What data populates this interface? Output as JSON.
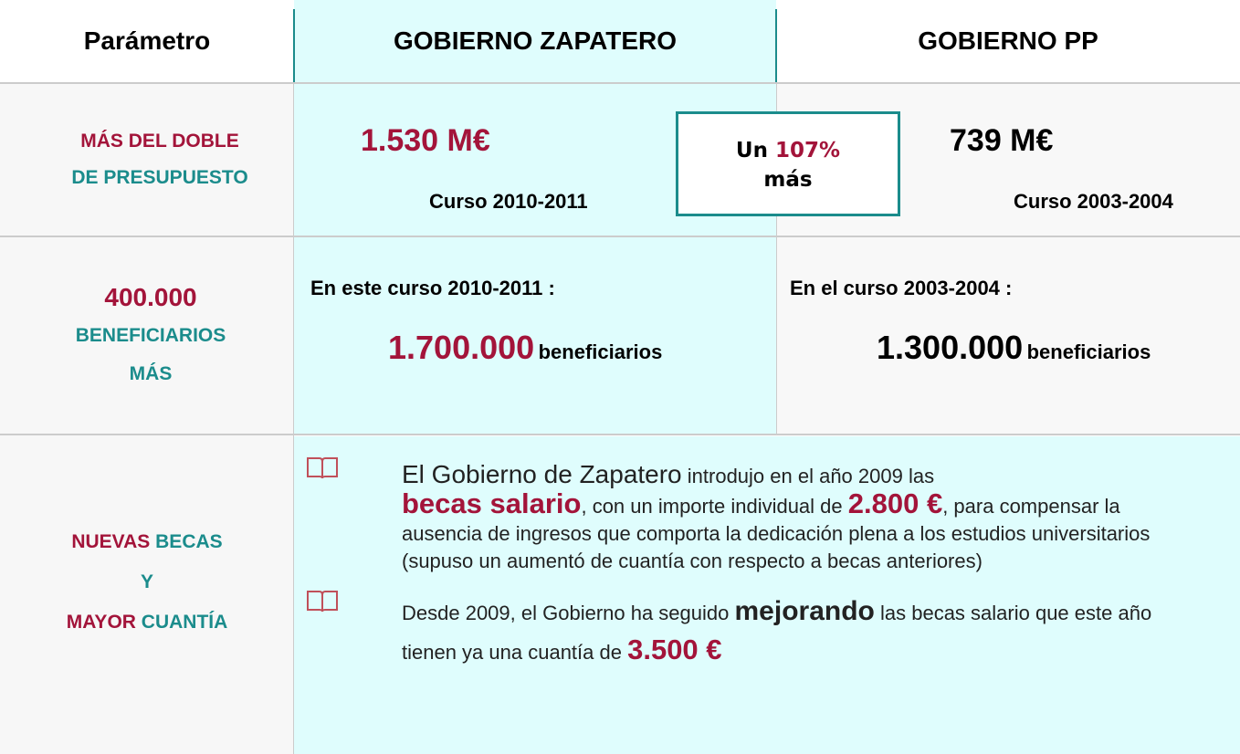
{
  "table": {
    "headers": [
      "Parámetro",
      "GOBIERNO ZAPATERO",
      "GOBIERNO PP"
    ],
    "rows": [
      {
        "label": [
          "MÁS DEL DOBLE",
          "DE PRESUPUESTO"
        ],
        "zapatero": {
          "amount": "1.530 M€",
          "course": "Curso 2010-2011"
        },
        "comparison": [
          "Un",
          "107%",
          "más"
        ],
        "pp": {
          "amount": "739 M€",
          "course": "Curso 2003-2004"
        }
      },
      {
        "label": [
          "400.000",
          "BENEFICIARIOS",
          "MÁS"
        ],
        "zapatero": {
          "intro": "En este curso 2010-2011 :",
          "number": "1.700.000",
          "unit": "beneficiarios"
        },
        "pp": {
          "intro": "En el curso 2003-2004 :",
          "number": "1.300.000",
          "unit": "beneficiarios"
        }
      },
      {
        "label": [
          [
            "NUEVAS",
            "BECAS"
          ],
          [
            "Y"
          ],
          [
            "MAYOR",
            "CUANTÍA"
          ]
        ],
        "items": [
          [
            "El Gobierno de Zapatero",
            "introdujo en el año 2009 las",
            "becas salario",
            ", con un importe individual de",
            "2.800 €",
            ", para compensar la ausencia de ingresos que comporta la dedicación plena a los estudios universitarios (supuso un aumentó de cuantía con respecto a becas anteriores)"
          ],
          [
            "Desde 2009, el Gobierno ha seguido",
            "mejorando",
            "las becas salario que este año tienen ya una cuantía de",
            "3.500 €"
          ]
        ]
      }
    ]
  }
}
